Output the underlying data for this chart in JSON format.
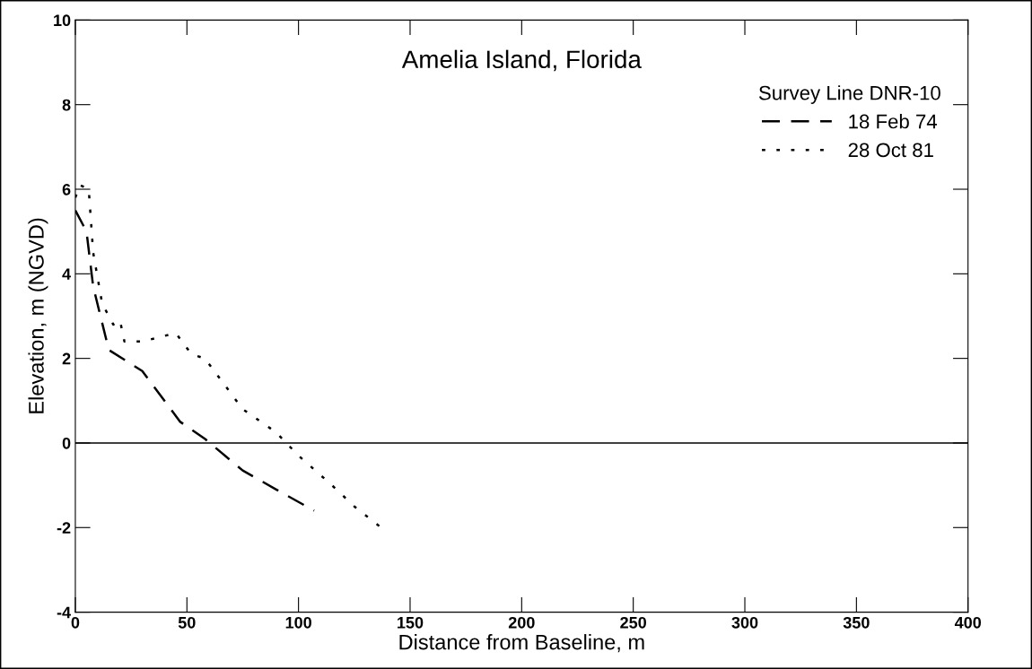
{
  "chart_data": {
    "type": "line",
    "title": "Amelia Island, Florida",
    "xlabel": "Distance from Baseline, m",
    "ylabel": "Elevation, m (NGVD)",
    "legend_title": "Survey Line DNR-10",
    "legend": "top right",
    "grid": false,
    "xlim": [
      0,
      400
    ],
    "xticks": [
      0,
      50,
      100,
      150,
      200,
      250,
      300,
      350,
      400
    ],
    "ylim": [
      -4,
      10
    ],
    "yticks": [
      -4,
      -2,
      0,
      2,
      4,
      6,
      8,
      10
    ],
    "ref_lines": [
      {
        "axis": "y",
        "value": 0,
        "color": "#000000",
        "line_style": "solid"
      }
    ],
    "series": [
      {
        "name": "18 Feb 74",
        "color": "#000000",
        "line_style": "dashed",
        "x": [
          0,
          5,
          8,
          15,
          30,
          47,
          58,
          75,
          90,
          107
        ],
        "values": [
          5.5,
          5.0,
          3.7,
          2.2,
          1.7,
          0.5,
          0.1,
          -0.65,
          -1.1,
          -1.6
        ]
      },
      {
        "name": "28 Oct 81",
        "color": "#000000",
        "line_style": "dotted",
        "x": [
          0,
          2,
          6,
          8,
          12,
          17,
          20,
          22,
          30,
          45,
          52,
          58,
          75,
          90,
          100,
          115,
          125,
          137
        ],
        "values": [
          5.8,
          6.1,
          6.0,
          4.5,
          3.3,
          2.8,
          2.9,
          2.4,
          2.4,
          2.6,
          2.1,
          2.0,
          0.8,
          0.25,
          -0.3,
          -1.0,
          -1.5,
          -2.0
        ]
      }
    ]
  }
}
